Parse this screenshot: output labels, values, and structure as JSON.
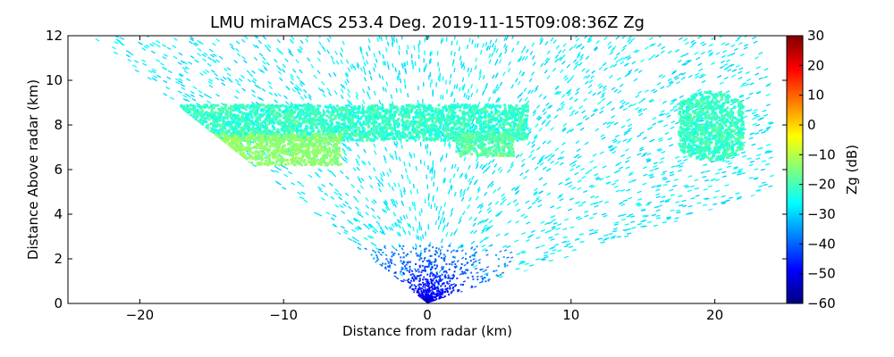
{
  "chart_data": {
    "type": "heatmap",
    "subtype": "rhi-radar-scan",
    "title": "LMU miraMACS 253.4 Deg. 2019-11-15T09:08:36Z  Zg",
    "xlabel": "Distance from radar (km)",
    "ylabel": "Distance Above radar  (km)",
    "xlim": [
      -25,
      25
    ],
    "ylim": [
      0,
      12
    ],
    "xticks": [
      -20,
      -10,
      0,
      10,
      20
    ],
    "xtick_labels": [
      "−20",
      "−10",
      "0",
      "10",
      "20"
    ],
    "yticks": [
      0,
      2,
      4,
      6,
      8,
      10,
      12
    ],
    "ytick_labels": [
      "0",
      "2",
      "4",
      "6",
      "8",
      "10",
      "12"
    ],
    "grid": false,
    "colorbar": {
      "label": "Zg (dB)",
      "range": [
        -60,
        30
      ],
      "ticks": [
        -60,
        -50,
        -40,
        -30,
        -20,
        -10,
        0,
        10,
        20,
        30
      ],
      "tick_labels": [
        "−60",
        "−50",
        "−40",
        "−30",
        "−20",
        "−10",
        "0",
        "10",
        "20",
        "30"
      ],
      "colormap": "jet",
      "colors": [
        "#00007f",
        "#0000ff",
        "#007fff",
        "#00ffff",
        "#7fff7f",
        "#ffff00",
        "#ff7f00",
        "#ff0000",
        "#7f0000"
      ]
    },
    "scan_sector": {
      "left_elevation_edge_deg": 153,
      "right_elevation_edge_deg": 12,
      "max_range_km": 26
    },
    "features": [
      {
        "name": "background noise",
        "zg_db": -28,
        "description": "sparse speckle filling scanned sector"
      },
      {
        "name": "near-radar clutter",
        "x_km": [
          -5,
          6
        ],
        "height_km": [
          0,
          2.5
        ],
        "zg_db": [
          -50,
          -38
        ]
      },
      {
        "name": "cloud layer upper band",
        "x_km": [
          -23,
          7
        ],
        "height_km": [
          7.3,
          8.9
        ],
        "zg_db": [
          -25,
          -18
        ]
      },
      {
        "name": "cloud layer lower band",
        "x_km": [
          -23.5,
          -6
        ],
        "height_km": [
          6.2,
          7.6
        ],
        "zg_db": [
          -15,
          -12
        ]
      },
      {
        "name": "cloud fragment right of radar",
        "x_km": [
          2,
          6
        ],
        "height_km": [
          6.6,
          7.6
        ],
        "zg_db": [
          -22,
          -15
        ]
      },
      {
        "name": "isolated cloud far right",
        "x_km": [
          17.5,
          22
        ],
        "height_km": [
          6.4,
          9.5
        ],
        "zg_db": [
          -24,
          -18
        ]
      }
    ]
  }
}
